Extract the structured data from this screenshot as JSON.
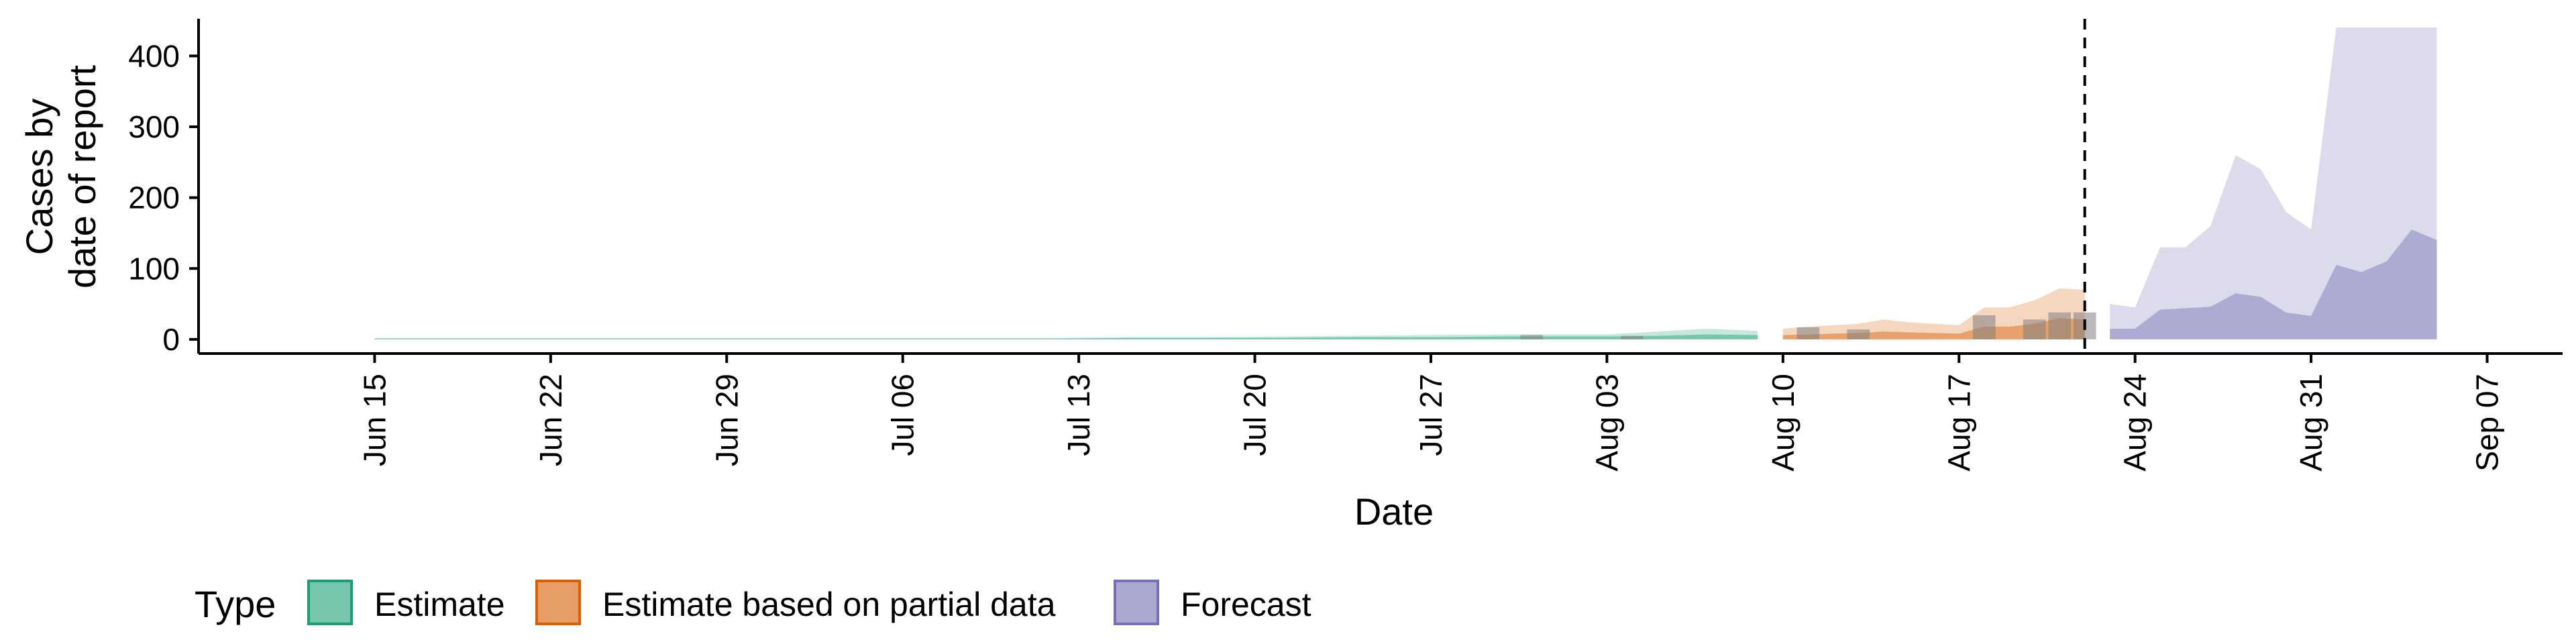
{
  "chart_data": {
    "type": "area",
    "xlabel": "Date",
    "ylabel_lines": [
      "Cases by",
      "date of report"
    ],
    "yticks": [
      0,
      100,
      200,
      300,
      400
    ],
    "ylim": [
      -20,
      460
    ],
    "xlim": [
      "2020-06-08",
      "2020-09-10"
    ],
    "x_ticks": [
      {
        "date": "2020-06-15",
        "label": "Jun 15"
      },
      {
        "date": "2020-06-22",
        "label": "Jun 22"
      },
      {
        "date": "2020-06-29",
        "label": "Jun 29"
      },
      {
        "date": "2020-07-06",
        "label": "Jul 06"
      },
      {
        "date": "2020-07-13",
        "label": "Jul 13"
      },
      {
        "date": "2020-07-20",
        "label": "Jul 20"
      },
      {
        "date": "2020-07-27",
        "label": "Jul 27"
      },
      {
        "date": "2020-08-03",
        "label": "Aug 03"
      },
      {
        "date": "2020-08-10",
        "label": "Aug 10"
      },
      {
        "date": "2020-08-17",
        "label": "Aug 17"
      },
      {
        "date": "2020-08-24",
        "label": "Aug 24"
      },
      {
        "date": "2020-08-31",
        "label": "Aug 31"
      },
      {
        "date": "2020-09-07",
        "label": "Sep 07"
      }
    ],
    "legend": {
      "title": "Type",
      "position": "bottom",
      "items": [
        "Estimate",
        "Estimate based on partial data",
        "Forecast"
      ]
    },
    "vline_date": "2020-08-22",
    "vline_style": "dashed",
    "colors": {
      "estimate": "#1b9e77",
      "partial": "#d95f02",
      "forecast": "#7570b3",
      "observed_bar": "#7f7f7f"
    },
    "series": [
      {
        "name": "Estimate",
        "dates": [
          "2020-06-15",
          "2020-06-18",
          "2020-06-21",
          "2020-06-24",
          "2020-06-27",
          "2020-06-30",
          "2020-07-03",
          "2020-07-06",
          "2020-07-09",
          "2020-07-12",
          "2020-07-15",
          "2020-07-18",
          "2020-07-21",
          "2020-07-24",
          "2020-07-27",
          "2020-07-30",
          "2020-08-01",
          "2020-08-03",
          "2020-08-05",
          "2020-08-07",
          "2020-08-09"
        ],
        "lower_outer": [
          0,
          0,
          0,
          0,
          0,
          0,
          0,
          0,
          0,
          0,
          0,
          0,
          0,
          0,
          0,
          0,
          0,
          0,
          0,
          0,
          0
        ],
        "upper_outer": [
          2,
          2,
          2,
          2,
          2,
          2,
          2,
          2,
          2,
          2,
          3,
          3,
          4,
          5,
          6,
          7,
          7,
          7,
          11,
          15,
          12
        ],
        "lower_inner": [
          0,
          0,
          0,
          0,
          0,
          0,
          0,
          0,
          0,
          0,
          0,
          0,
          0,
          0,
          0,
          0,
          0,
          0,
          0,
          0,
          0
        ],
        "upper_inner": [
          1,
          1,
          1,
          1,
          1,
          1,
          1,
          1,
          1,
          1,
          2,
          2,
          2,
          3,
          3,
          4,
          4,
          4,
          5,
          7,
          6
        ]
      },
      {
        "name": "Estimate based on partial data",
        "dates": [
          "2020-08-10",
          "2020-08-11",
          "2020-08-12",
          "2020-08-13",
          "2020-08-14",
          "2020-08-15",
          "2020-08-16",
          "2020-08-17",
          "2020-08-18",
          "2020-08-19",
          "2020-08-20",
          "2020-08-21",
          "2020-08-22"
        ],
        "lower_outer": [
          0,
          0,
          0,
          0,
          0,
          0,
          0,
          0,
          0,
          0,
          0,
          0,
          0
        ],
        "upper_outer": [
          15,
          18,
          20,
          22,
          28,
          24,
          22,
          20,
          45,
          45,
          55,
          72,
          70
        ],
        "lower_inner": [
          0,
          0,
          0,
          0,
          0,
          0,
          0,
          0,
          0,
          0,
          0,
          0,
          0
        ],
        "upper_inner": [
          6,
          7,
          8,
          9,
          11,
          10,
          9,
          8,
          18,
          18,
          22,
          30,
          28
        ]
      },
      {
        "name": "Forecast",
        "dates": [
          "2020-08-23",
          "2020-08-24",
          "2020-08-25",
          "2020-08-26",
          "2020-08-27",
          "2020-08-28",
          "2020-08-29",
          "2020-08-30",
          "2020-08-31",
          "2020-09-01",
          "2020-09-02",
          "2020-09-03",
          "2020-09-04",
          "2020-09-05"
        ],
        "lower_outer": [
          0,
          0,
          0,
          0,
          0,
          0,
          0,
          0,
          0,
          0,
          0,
          0,
          0,
          0
        ],
        "upper_outer": [
          50,
          45,
          130,
          130,
          160,
          260,
          240,
          180,
          155,
          440,
          440,
          440,
          440,
          440
        ],
        "lower_inner": [
          0,
          0,
          0,
          0,
          0,
          0,
          0,
          0,
          0,
          0,
          0,
          0,
          0,
          0
        ],
        "upper_inner": [
          15,
          15,
          42,
          44,
          46,
          65,
          60,
          38,
          33,
          105,
          95,
          110,
          155,
          140
        ]
      }
    ],
    "observed": {
      "dates": [
        "2020-07-31",
        "2020-08-04",
        "2020-08-11",
        "2020-08-13",
        "2020-08-18",
        "2020-08-20",
        "2020-08-21",
        "2020-08-22"
      ],
      "values": [
        6,
        5,
        17,
        14,
        34,
        28,
        38,
        38
      ]
    }
  }
}
